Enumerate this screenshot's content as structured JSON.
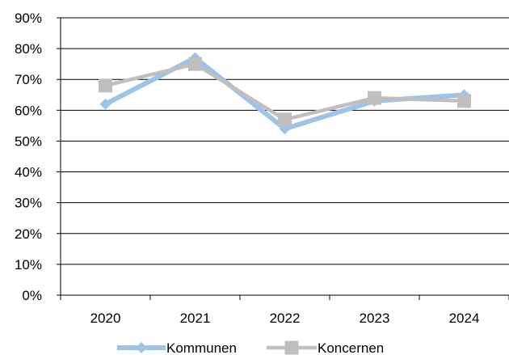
{
  "chart_data": {
    "type": "line",
    "title": "",
    "xlabel": "",
    "ylabel": "",
    "categories": [
      "2020",
      "2021",
      "2022",
      "2023",
      "2024"
    ],
    "ylim": [
      0,
      90
    ],
    "yticks": [
      0,
      10,
      20,
      30,
      40,
      50,
      60,
      70,
      80,
      90
    ],
    "ytick_suffix": "%",
    "grid": true,
    "legend_position": "bottom",
    "series": [
      {
        "name": "Kommunen",
        "values": [
          62,
          77,
          54,
          63,
          65
        ],
        "color": "#9DC3E6",
        "marker": "diamond"
      },
      {
        "name": "Koncernen",
        "values": [
          68,
          75,
          57,
          64,
          63
        ],
        "color": "#BFBFBF",
        "marker": "square"
      }
    ]
  }
}
